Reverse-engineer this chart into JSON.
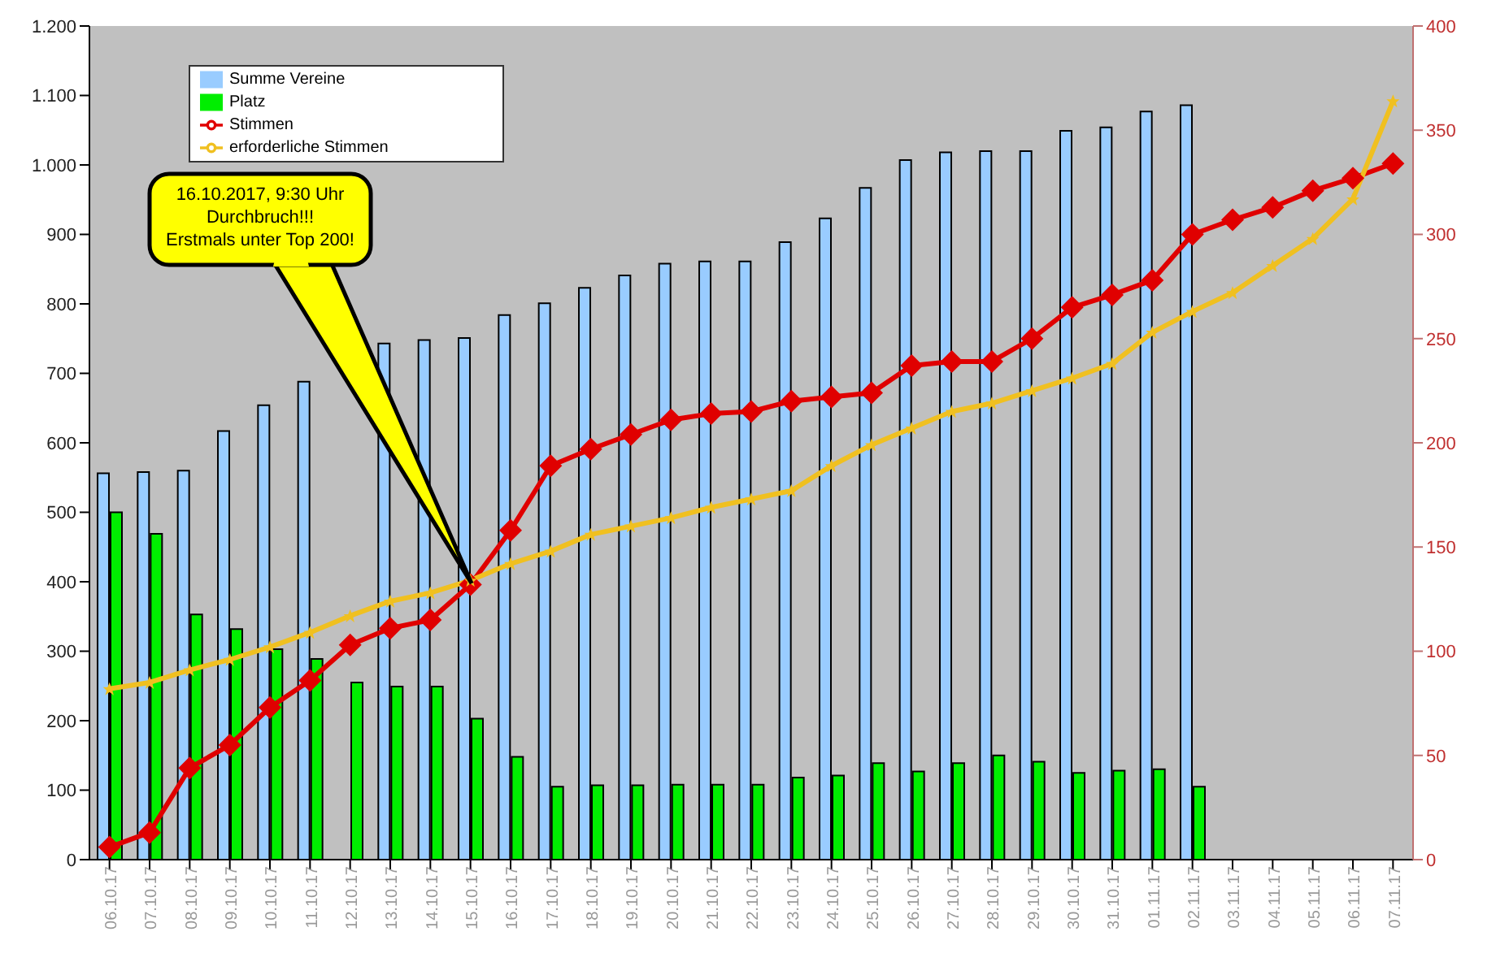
{
  "chart_data": {
    "type": "bar",
    "categories": [
      "06.10.17",
      "07.10.17",
      "08.10.17",
      "09.10.17",
      "10.10.17",
      "11.10.17",
      "12.10.17",
      "13.10.17",
      "14.10.17",
      "15.10.17",
      "16.10.17",
      "17.10.17",
      "18.10.17",
      "19.10.17",
      "20.10.17",
      "21.10.17",
      "22.10.17",
      "23.10.17",
      "24.10.17",
      "25.10.17",
      "26.10.17",
      "27.10.17",
      "28.10.17",
      "29.10.17",
      "30.10.17",
      "31.10.17",
      "01.11.17",
      "02.11.17",
      "03.11.17",
      "04.11.17",
      "05.11.17",
      "06.11.17",
      "07.11.17"
    ],
    "series": [
      {
        "name": "Summe Vereine",
        "color": "#99ccff",
        "values": [
          556,
          558,
          560,
          617,
          654,
          688,
          null,
          743,
          748,
          751,
          784,
          801,
          823,
          841,
          858,
          861,
          861,
          889,
          923,
          967,
          1007,
          1018,
          1020,
          1020,
          1049,
          1054,
          1077,
          1086,
          null,
          null,
          null,
          null,
          null
        ]
      },
      {
        "name": "Platz",
        "color": "#00ee00",
        "values": [
          500,
          469,
          353,
          332,
          303,
          289,
          255,
          249,
          249,
          203,
          148,
          105,
          107,
          107,
          108,
          108,
          108,
          118,
          121,
          139,
          127,
          139,
          150,
          141,
          125,
          128,
          130,
          105,
          null,
          null,
          null,
          null,
          null
        ]
      },
      {
        "name": "Stimmen",
        "type": "line",
        "axis": "y2",
        "color": "#e00000",
        "marker": "diamond",
        "values": [
          6,
          13,
          44,
          55,
          73,
          86,
          103,
          111,
          115,
          132,
          158,
          189,
          197,
          204,
          211,
          214,
          215,
          220,
          222,
          224,
          237,
          239,
          239,
          250,
          265,
          271,
          278,
          300,
          307,
          313,
          321,
          327,
          334
        ]
      },
      {
        "name": "erforderliche Stimmen",
        "type": "line",
        "axis": "y2",
        "color": "#f0c020",
        "marker": "star",
        "values": [
          82,
          85,
          91,
          96,
          102,
          109,
          117,
          124,
          128,
          134,
          142,
          148,
          156,
          160,
          164,
          169,
          173,
          177,
          189,
          199,
          207,
          215,
          219,
          225,
          231,
          238,
          253,
          263,
          272,
          285,
          298,
          317,
          364
        ]
      }
    ],
    "ylim": [
      0,
      1200
    ],
    "yticks": [
      0,
      100,
      200,
      300,
      400,
      500,
      600,
      700,
      800,
      900,
      {
        "value": 1000,
        "label": "1.000"
      },
      {
        "value": 1100,
        "label": "1.100"
      },
      {
        "value": 1200,
        "label": "1.200"
      }
    ],
    "y2lim": [
      0,
      400
    ],
    "y2ticks": [
      0,
      50,
      100,
      150,
      200,
      250,
      300,
      350,
      400
    ],
    "legend": "top left",
    "annotations": [
      "16.10.2017, 9:30 Uhr\nDurchbruch!!!\nErstmals unter Top 200!"
    ]
  }
}
